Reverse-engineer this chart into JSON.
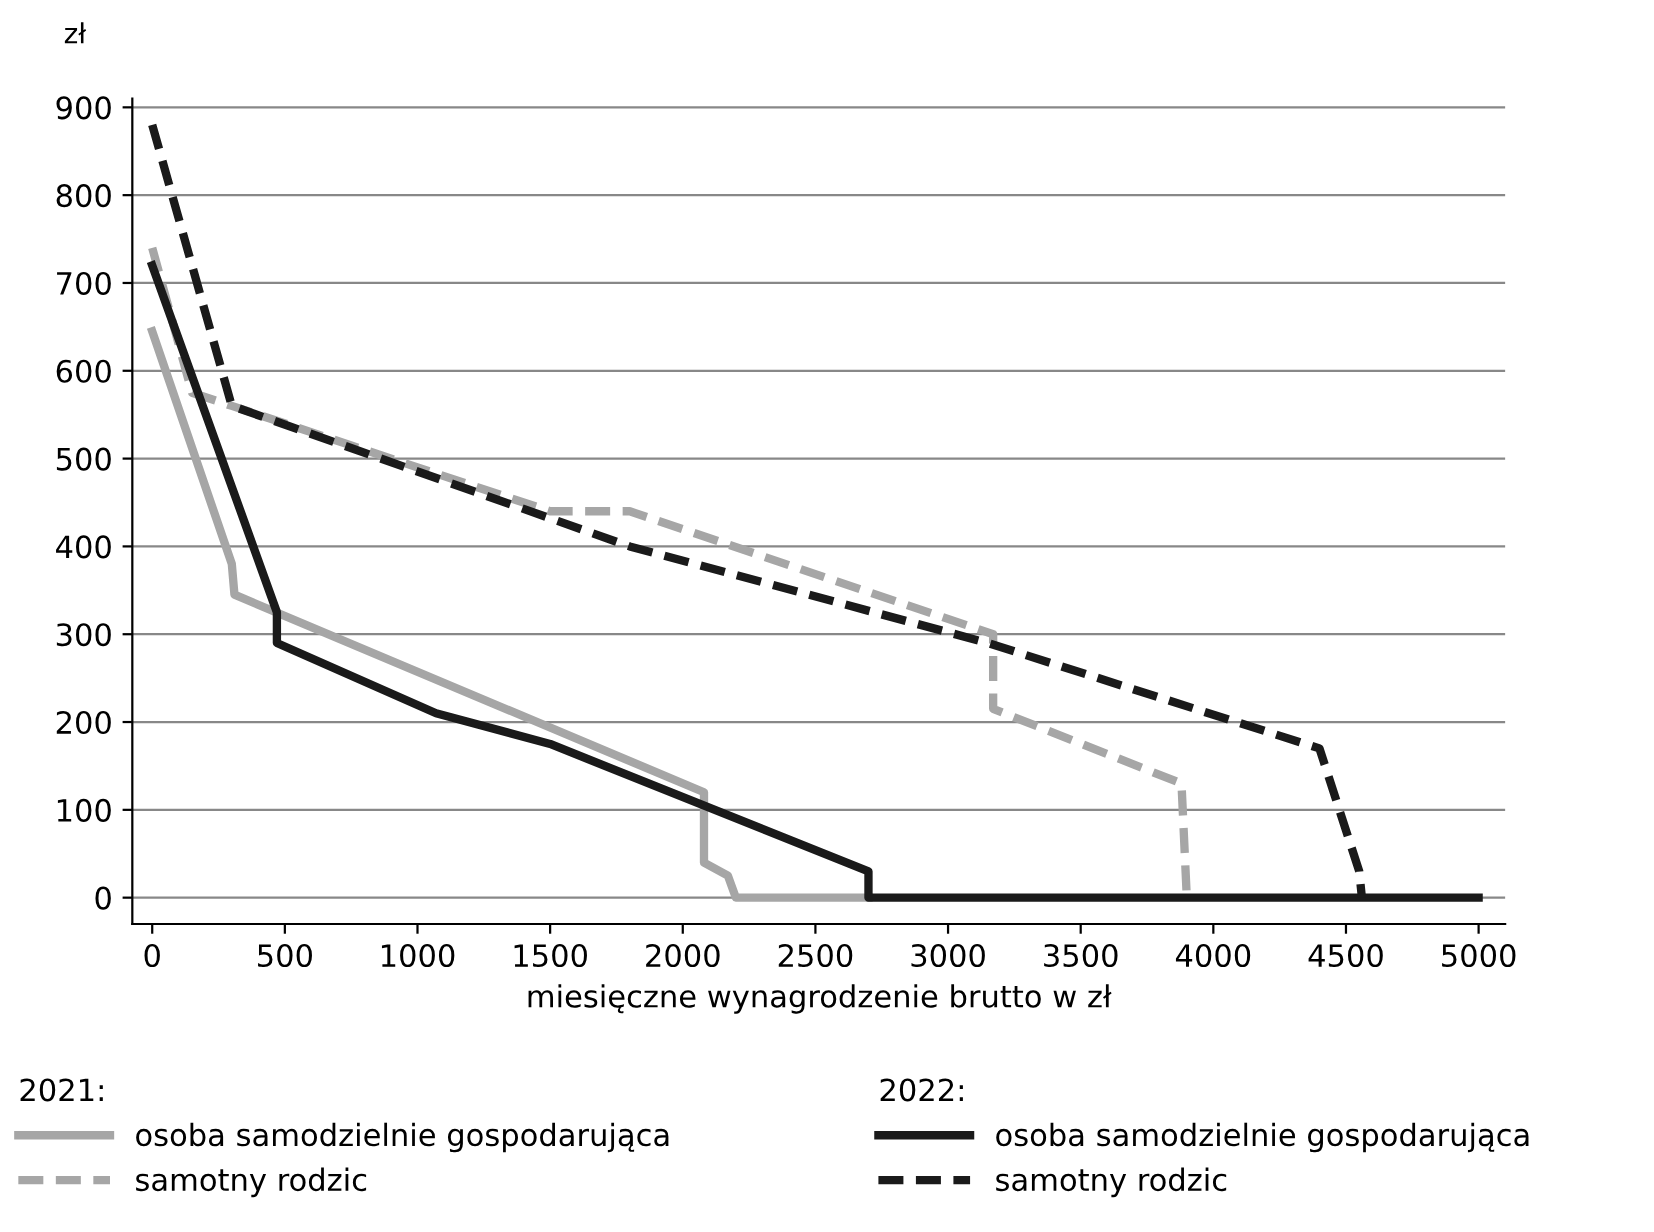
{
  "chart_data": {
    "type": "line",
    "ylabel": "zł",
    "xlabel": "miesięczne wynagrodzenie brutto w zł",
    "xlim": [
      -75,
      5100
    ],
    "ylim": [
      -30,
      910
    ],
    "xticks": [
      0,
      500,
      1000,
      1500,
      2000,
      2500,
      3000,
      3500,
      4000,
      4500,
      5000
    ],
    "yticks": [
      0,
      100,
      200,
      300,
      400,
      500,
      600,
      700,
      800,
      900
    ],
    "grid": "y",
    "legend": "bottom",
    "annotations": [
      "2021:",
      "2022:"
    ],
    "series": [
      {
        "name": "osoba samodzielnie gospodarująca",
        "color": "#a6a6a6",
        "line_style": "solid",
        "x": [
          0,
          300,
          310,
          2080,
          2080,
          2170,
          2200,
          2700
        ],
        "values": [
          645,
          380,
          345,
          120,
          40,
          25,
          0,
          0
        ]
      },
      {
        "name": "samotny rodzic",
        "color": "#a6a6a6",
        "line_style": "dashed",
        "x": [
          0,
          150,
          300,
          1500,
          1800,
          3170,
          3170,
          3880,
          3900
        ],
        "values": [
          740,
          575,
          560,
          440,
          440,
          300,
          215,
          130,
          0
        ]
      },
      {
        "name": "osoba samodzielnie gospodarująca",
        "color": "#1a1a1a",
        "line_style": "solid",
        "x": [
          0,
          470,
          470,
          1070,
          1500,
          2700,
          2700,
          5000
        ],
        "values": [
          720,
          325,
          290,
          210,
          175,
          30,
          0,
          0
        ]
      },
      {
        "name": "samotny rodzic",
        "color": "#1a1a1a",
        "line_style": "dashed",
        "x": [
          0,
          300,
          1800,
          3150,
          4400,
          4550,
          4560
        ],
        "values": [
          880,
          560,
          400,
          290,
          170,
          30,
          0
        ]
      }
    ]
  }
}
